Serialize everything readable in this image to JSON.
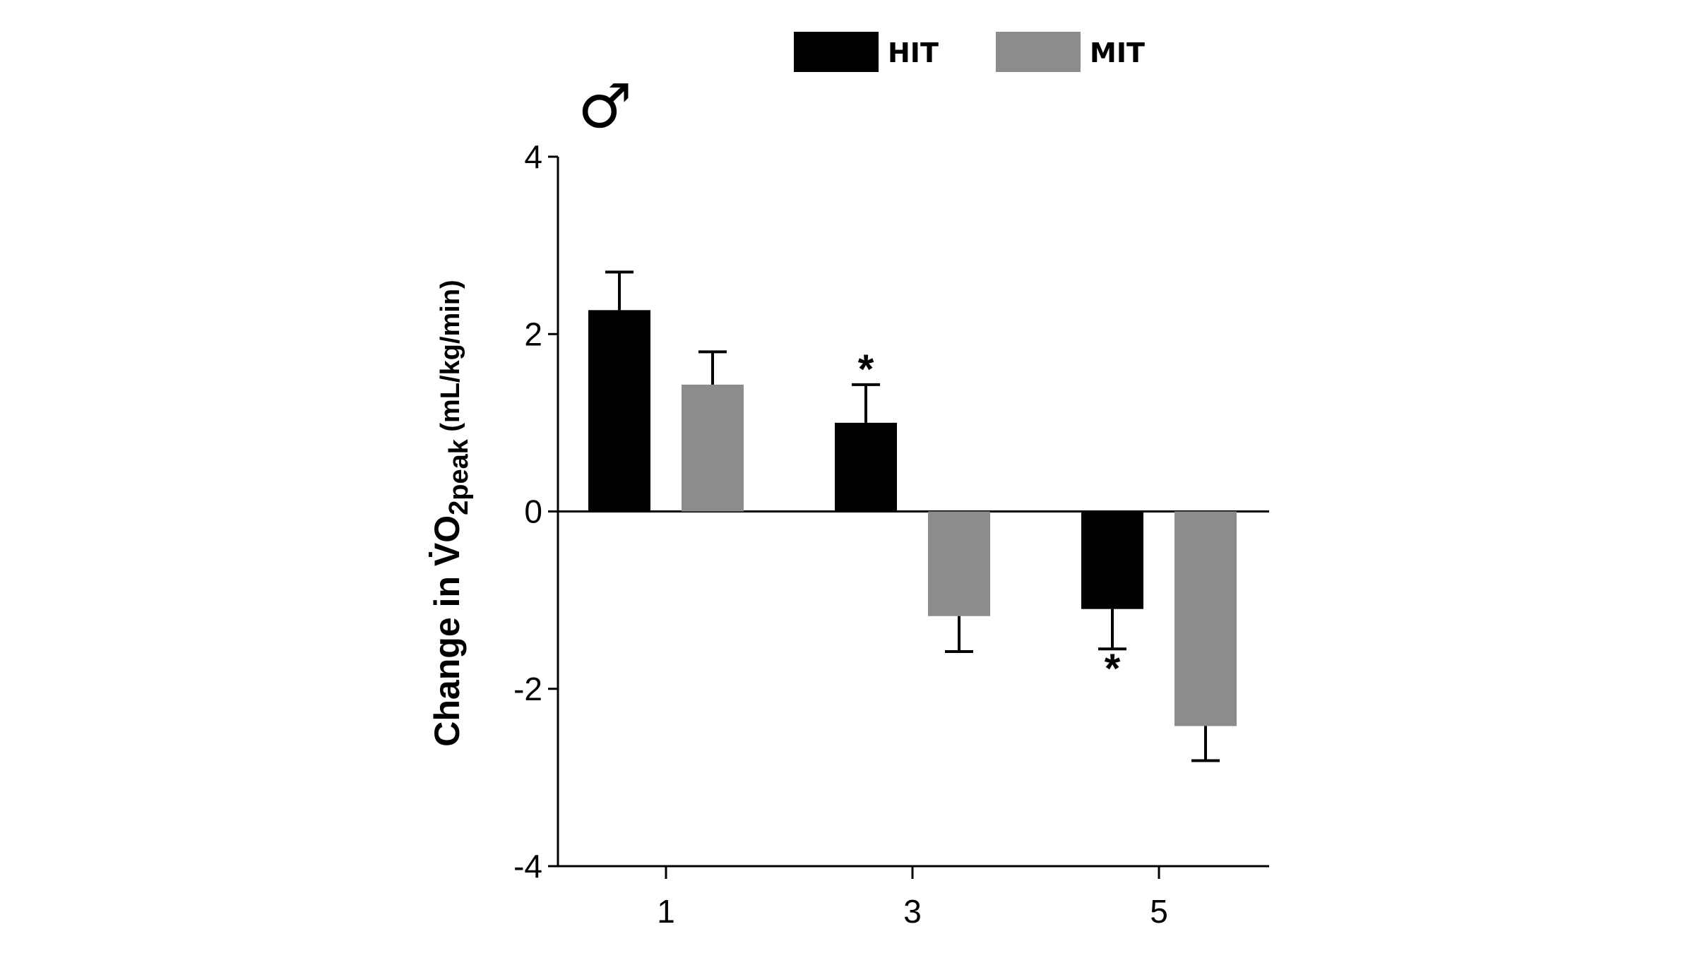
{
  "chart_data": {
    "type": "bar",
    "panel_symbol": "♂",
    "categories": [
      "1",
      "3",
      "5"
    ],
    "series": [
      {
        "name": "HIT",
        "color": "#000000",
        "values": [
          2.27,
          1.0,
          -1.1
        ],
        "errors": [
          0.43,
          0.43,
          0.45
        ],
        "significance": [
          "",
          "*",
          "*"
        ]
      },
      {
        "name": "MIT",
        "color": "#8c8c8c",
        "values": [
          1.43,
          -1.18,
          -2.42
        ],
        "errors": [
          0.37,
          0.4,
          0.39
        ],
        "significance": [
          "",
          "",
          ""
        ]
      }
    ],
    "ylabel": {
      "main": "Change in V̇O",
      "subscript": "2peak",
      "units": " (mL/kg/min)"
    },
    "yticks": [
      "4",
      "2",
      "0",
      "-2",
      "-4"
    ],
    "ytick_values": [
      4,
      2,
      0,
      -2,
      -4
    ],
    "ylim": [
      -4,
      4
    ],
    "legend_position": "top",
    "grid": false
  }
}
